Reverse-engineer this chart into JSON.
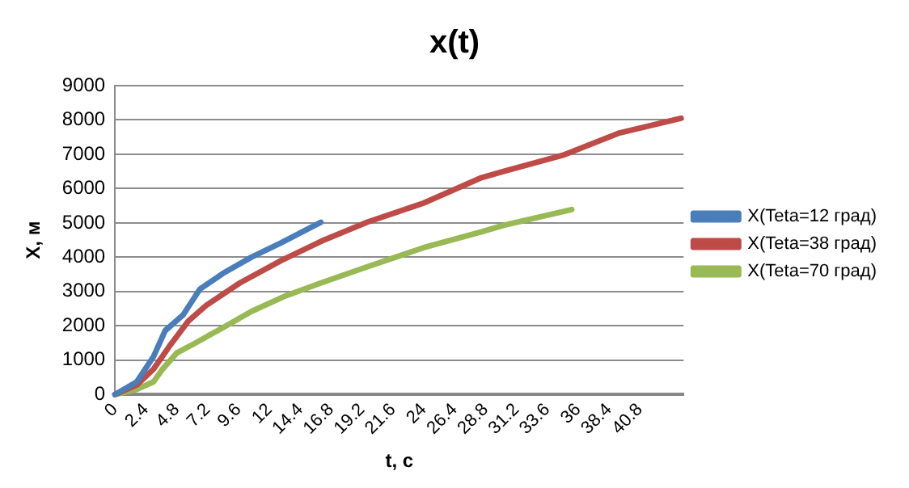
{
  "chart_data": {
    "type": "line",
    "title": "x(t)",
    "xlabel": "t, c",
    "ylabel": "X, м",
    "xlim": [
      0,
      44.2
    ],
    "xticks": [
      0,
      2.4,
      4.8,
      7.2,
      9.6,
      12,
      14.4,
      16.8,
      19.2,
      21.6,
      24,
      26.4,
      28.8,
      31.2,
      33.6,
      36,
      38.4,
      40.8
    ],
    "ylim": [
      0,
      9000
    ],
    "yticks": [
      0,
      1000,
      2000,
      3000,
      4000,
      5000,
      6000,
      7000,
      8000,
      9000
    ],
    "grid": "y",
    "legend": "right",
    "marker": "none",
    "line_style": "solid",
    "series": [
      {
        "name": "X(Teta=12 град)",
        "color": "#4a7ebb",
        "x": [
          0,
          1.7,
          3.0,
          3.9,
          5.3,
          6.6,
          8.4,
          10.6,
          12.9,
          16.0
        ],
        "values": [
          0,
          370,
          1110,
          1860,
          2320,
          3070,
          3530,
          4000,
          4420,
          5020
        ]
      },
      {
        "name": "X(Teta=38 град)",
        "color": "#be4b48",
        "x": [
          0,
          1.7,
          3.0,
          4.2,
          5.7,
          7.1,
          9.7,
          12.9,
          16.0,
          19.6,
          24.0,
          28.5,
          30.2,
          34.8,
          39.2,
          44.0
        ],
        "values": [
          0,
          280,
          740,
          1390,
          2140,
          2600,
          3250,
          3900,
          4460,
          5020,
          5580,
          6320,
          6500,
          6970,
          7620,
          8050
        ]
      },
      {
        "name": "X(Teta=70 град)",
        "color": "#98b954",
        "x": [
          0,
          1.7,
          3.0,
          3.7,
          4.8,
          6.2,
          8.4,
          10.6,
          13.3,
          16.0,
          19.6,
          24.0,
          28.5,
          30.2,
          35.5
        ],
        "values": [
          0,
          150,
          370,
          740,
          1210,
          1490,
          1950,
          2420,
          2880,
          3250,
          3720,
          4280,
          4740,
          4930,
          5390
        ]
      }
    ]
  }
}
